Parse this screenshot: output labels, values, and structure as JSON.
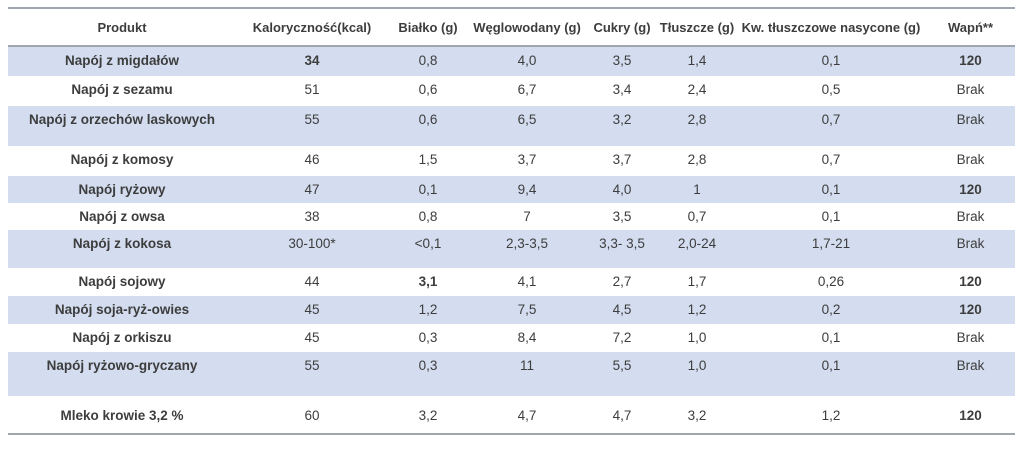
{
  "colors": {
    "row_band": "#d3ddef",
    "border_line": "#a0a6ae",
    "text": "#3d3d3d",
    "background": "#ffffff"
  },
  "table": {
    "columns": [
      "Produkt",
      "Kaloryczność(kcal)",
      "Białko (g)",
      "Węglowodany (g)",
      "Cukry (g)",
      "Tłuszcze (g)",
      "Kw. tłuszczowe nasycone (g)",
      "Wapń**"
    ],
    "rows": [
      {
        "product": "Napój z migdałów",
        "values": [
          "34",
          "0,8",
          "4,0",
          "3,5",
          "1,4",
          "0,1",
          "120"
        ],
        "bold_values": [
          0,
          6
        ],
        "shaded": true
      },
      {
        "product": "Napój z sezamu",
        "values": [
          "51",
          "0,6",
          "6,7",
          "3,4",
          "2,4",
          "0,5",
          "Brak"
        ],
        "bold_values": [],
        "shaded": false
      },
      {
        "product": "Napój z orzechów laskowych",
        "values": [
          "55",
          "0,6",
          "6,5",
          "3,2",
          "2,8",
          "0,7",
          "Brak"
        ],
        "bold_values": [],
        "shaded": true
      },
      {
        "product": "Napój z komosy",
        "values": [
          "46",
          "1,5",
          "3,7",
          "3,7",
          "2,8",
          "0,7",
          "Brak"
        ],
        "bold_values": [],
        "shaded": false
      },
      {
        "product": "Napój ryżowy",
        "values": [
          "47",
          "0,1",
          "9,4",
          "4,0",
          "1",
          "0,1",
          "120"
        ],
        "bold_values": [
          6
        ],
        "shaded": true
      },
      {
        "product": "Napój z owsa",
        "values": [
          "38",
          "0,8",
          "7",
          "3,5",
          "0,7",
          "0,1",
          "Brak"
        ],
        "bold_values": [],
        "shaded": false
      },
      {
        "product": "Napój z kokosa",
        "values": [
          "30-100*",
          "<0,1",
          "2,3-3,5",
          "3,3- 3,5",
          "2,0-24",
          "1,7-21",
          "Brak"
        ],
        "bold_values": [],
        "shaded": true
      },
      {
        "product": "Napój sojowy",
        "values": [
          "44",
          "3,1",
          "4,1",
          "2,7",
          "1,7",
          "0,26",
          "120"
        ],
        "bold_values": [
          1,
          6
        ],
        "shaded": false
      },
      {
        "product": "Napój soja-ryż-owies",
        "values": [
          "45",
          "1,2",
          "7,5",
          "4,5",
          "1,2",
          "0,2",
          "120"
        ],
        "bold_values": [
          6
        ],
        "shaded": true
      },
      {
        "product": "Napój z orkiszu",
        "values": [
          "45",
          "0,3",
          "8,4",
          "7,2",
          "1,0",
          "0,1",
          "Brak"
        ],
        "bold_values": [],
        "shaded": false
      },
      {
        "product": "Napój ryżowo-gryczany",
        "values": [
          "55",
          "0,3",
          "11",
          "5,5",
          "1,0",
          "0,1",
          "Brak"
        ],
        "bold_values": [],
        "shaded": true
      },
      {
        "product": "Mleko krowie 3,2 %",
        "values": [
          "60",
          "3,2",
          "4,7",
          "4,7",
          "3,2",
          "1,2",
          "120"
        ],
        "bold_values": [
          6
        ],
        "shaded": false
      }
    ]
  }
}
